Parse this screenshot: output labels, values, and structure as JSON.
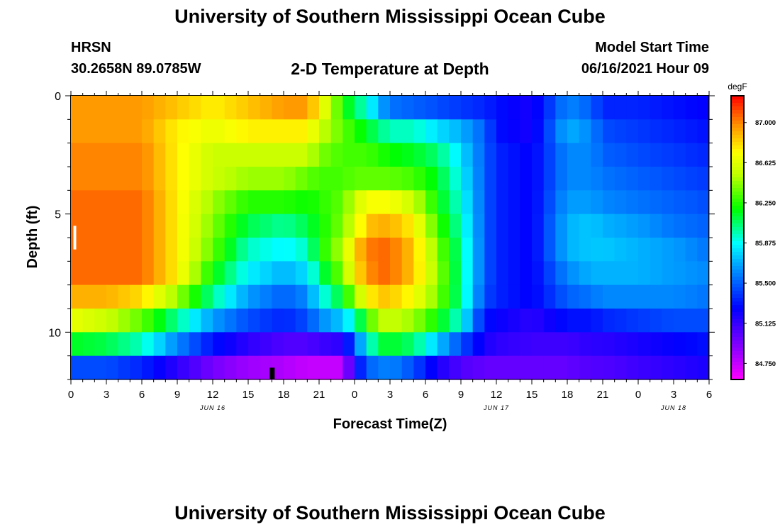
{
  "header": {
    "title": "University of Southern Mississippi Ocean Cube",
    "station": "HRSN",
    "coords": "30.2658N  89.0785W",
    "plot_title": "2-D Temperature at Depth",
    "model_start_label": "Model Start Time",
    "model_start_value": "06/16/2021 Hour 09"
  },
  "footer": {
    "title": "University of Southern Mississippi Ocean Cube"
  },
  "chart_data": {
    "type": "heatmap",
    "title": "2-D Temperature at Depth",
    "xlabel": "Forecast Time(Z)",
    "ylabel": "Depth (ft)",
    "x_range_hours": [
      0,
      54
    ],
    "x_ticks": [
      {
        "h": 0,
        "label": "0"
      },
      {
        "h": 3,
        "label": "3"
      },
      {
        "h": 6,
        "label": "6"
      },
      {
        "h": 9,
        "label": "9"
      },
      {
        "h": 12,
        "label": "12"
      },
      {
        "h": 15,
        "label": "15"
      },
      {
        "h": 18,
        "label": "18"
      },
      {
        "h": 21,
        "label": "21"
      },
      {
        "h": 24,
        "label": "0"
      },
      {
        "h": 27,
        "label": "3"
      },
      {
        "h": 30,
        "label": "6"
      },
      {
        "h": 33,
        "label": "9"
      },
      {
        "h": 36,
        "label": "12"
      },
      {
        "h": 39,
        "label": "15"
      },
      {
        "h": 42,
        "label": "18"
      },
      {
        "h": 45,
        "label": "21"
      },
      {
        "h": 48,
        "label": "0"
      },
      {
        "h": 51,
        "label": "3"
      },
      {
        "h": 54,
        "label": "6"
      }
    ],
    "date_labels": [
      {
        "h": 12,
        "label": "JUN 16"
      },
      {
        "h": 36,
        "label": "JUN 17"
      },
      {
        "h": 51,
        "label": "JUN 18"
      }
    ],
    "y_range_ft": [
      0,
      12
    ],
    "y_ticks": [
      {
        "v": 0,
        "label": "0"
      },
      {
        "v": 5,
        "label": "5"
      },
      {
        "v": 10,
        "label": "10"
      }
    ],
    "colorbar": {
      "unit": "degF",
      "min": 84.6,
      "max": 87.25,
      "tick_values": [
        87.0,
        86.625,
        86.25,
        85.875,
        85.5,
        85.125,
        84.75
      ],
      "tick_labels": [
        "87.000",
        "86.625",
        "86.250",
        "85.875",
        "85.500",
        "85.125",
        "84.750"
      ]
    },
    "depth_levels_ft": [
      0.5,
      1.5,
      2.5,
      3.5,
      4.5,
      5.5,
      6.5,
      7.5,
      8.5,
      9.5,
      10.5,
      11.5
    ],
    "keyframe_hours": [
      0,
      3,
      6,
      9,
      12,
      15,
      18,
      20,
      21,
      23,
      24,
      25,
      26,
      27,
      29,
      31,
      33,
      35,
      36,
      39,
      42,
      44,
      45,
      48,
      51,
      54
    ],
    "temperature_degF": [
      [
        86.95,
        86.95,
        86.95,
        86.85,
        86.75,
        86.85,
        86.95,
        86.95,
        86.75,
        86.25,
        86.05,
        85.95,
        85.7,
        85.55,
        85.5,
        85.45,
        85.4,
        85.35,
        85.3,
        85.2,
        85.6,
        85.5,
        85.35,
        85.35,
        85.3,
        85.25
      ],
      [
        86.95,
        86.95,
        86.95,
        86.75,
        86.65,
        86.75,
        86.75,
        86.75,
        86.55,
        86.35,
        86.25,
        86.15,
        86.05,
        85.95,
        85.95,
        85.8,
        85.7,
        85.5,
        85.3,
        85.2,
        85.7,
        85.6,
        85.45,
        85.4,
        85.35,
        85.3
      ],
      [
        87.0,
        87.0,
        87.0,
        86.75,
        86.55,
        86.55,
        86.55,
        86.55,
        86.4,
        86.3,
        86.3,
        86.3,
        86.25,
        86.2,
        86.15,
        86.05,
        85.8,
        85.5,
        85.35,
        85.25,
        85.6,
        85.6,
        85.5,
        85.45,
        85.4,
        85.35
      ],
      [
        87.0,
        87.0,
        87.0,
        86.75,
        86.55,
        86.45,
        86.45,
        86.35,
        86.3,
        86.3,
        86.35,
        86.35,
        86.35,
        86.35,
        86.3,
        86.15,
        85.85,
        85.5,
        85.35,
        85.25,
        85.6,
        85.6,
        85.55,
        85.5,
        85.45,
        85.4
      ],
      [
        87.05,
        87.05,
        87.05,
        86.75,
        86.45,
        86.25,
        86.25,
        86.2,
        86.25,
        86.35,
        86.55,
        86.7,
        86.7,
        86.7,
        86.55,
        86.2,
        85.9,
        85.5,
        85.35,
        85.25,
        85.65,
        85.65,
        85.6,
        85.55,
        85.5,
        85.45
      ],
      [
        87.05,
        87.05,
        87.05,
        86.75,
        86.4,
        86.1,
        86.0,
        86.1,
        86.2,
        86.4,
        86.6,
        86.85,
        86.9,
        86.9,
        86.75,
        86.3,
        85.95,
        85.5,
        85.35,
        85.25,
        85.7,
        85.75,
        85.7,
        85.65,
        85.55,
        85.5
      ],
      [
        87.05,
        87.05,
        87.05,
        86.75,
        86.35,
        85.95,
        85.85,
        85.95,
        86.2,
        86.5,
        86.8,
        87.0,
        87.05,
        87.05,
        86.85,
        86.4,
        86.0,
        85.5,
        85.35,
        85.25,
        85.7,
        85.75,
        85.75,
        85.7,
        85.65,
        85.55
      ],
      [
        87.05,
        87.05,
        87.05,
        86.75,
        86.2,
        85.85,
        85.7,
        85.8,
        86.05,
        86.4,
        86.75,
        86.95,
        87.05,
        87.05,
        86.85,
        86.45,
        86.0,
        85.5,
        85.35,
        85.25,
        85.6,
        85.7,
        85.7,
        85.7,
        85.65,
        85.6
      ],
      [
        86.9,
        86.9,
        86.8,
        86.45,
        86.0,
        85.65,
        85.5,
        85.6,
        85.85,
        86.15,
        86.45,
        86.7,
        86.85,
        86.85,
        86.7,
        86.4,
        86.0,
        85.45,
        85.35,
        85.25,
        85.5,
        85.55,
        85.6,
        85.6,
        85.6,
        85.55
      ],
      [
        86.65,
        86.55,
        86.35,
        86.0,
        85.65,
        85.45,
        85.35,
        85.45,
        85.6,
        85.75,
        85.95,
        86.25,
        86.5,
        86.55,
        86.45,
        86.2,
        85.9,
        85.3,
        85.25,
        85.15,
        85.3,
        85.3,
        85.35,
        85.4,
        85.45,
        85.45
      ],
      [
        86.15,
        86.1,
        85.95,
        85.6,
        85.3,
        85.15,
        85.05,
        85.05,
        85.1,
        85.15,
        85.5,
        85.85,
        86.1,
        86.15,
        86.05,
        85.75,
        85.45,
        85.2,
        85.15,
        85.1,
        85.1,
        85.15,
        85.15,
        85.2,
        85.25,
        85.3
      ],
      [
        85.45,
        85.45,
        85.35,
        85.15,
        84.95,
        84.85,
        84.8,
        84.75,
        84.75,
        84.75,
        85.2,
        85.5,
        85.55,
        85.6,
        85.45,
        85.2,
        85.05,
        85.0,
        85.0,
        85.0,
        85.0,
        85.05,
        85.05,
        85.1,
        85.15,
        85.2
      ]
    ],
    "annotations": [
      {
        "type": "white-marker",
        "h": 0.3,
        "depth_ft": [
          5.5,
          6.5
        ]
      },
      {
        "type": "black-marker",
        "h": 17,
        "depth_ft": [
          11.5,
          12
        ]
      }
    ]
  }
}
